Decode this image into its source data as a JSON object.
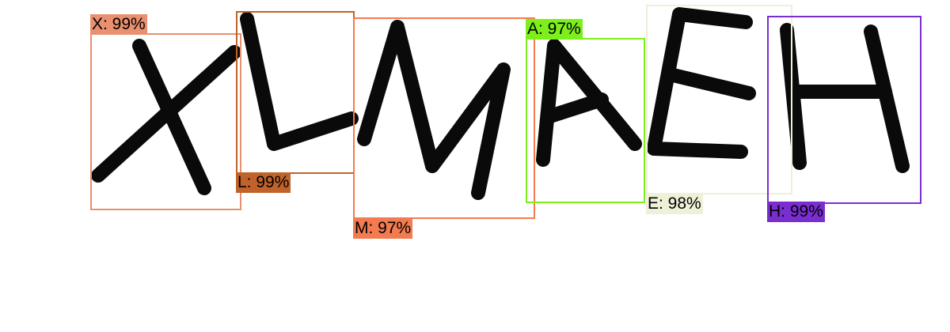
{
  "detections": [
    {
      "letter": "X",
      "label": "X: 99%",
      "color": "#e8906f"
    },
    {
      "letter": "L",
      "label": "L: 99%",
      "color": "#c0622a"
    },
    {
      "letter": "M",
      "label": "M: 97%",
      "color": "#f47a50"
    },
    {
      "letter": "A",
      "label": "A: 97%",
      "color": "#7df01c"
    },
    {
      "letter": "E",
      "label": "E: 98%",
      "color": "#eef0d8"
    },
    {
      "letter": "H",
      "label": "H: 99%",
      "color": "#7a2ed0"
    }
  ]
}
